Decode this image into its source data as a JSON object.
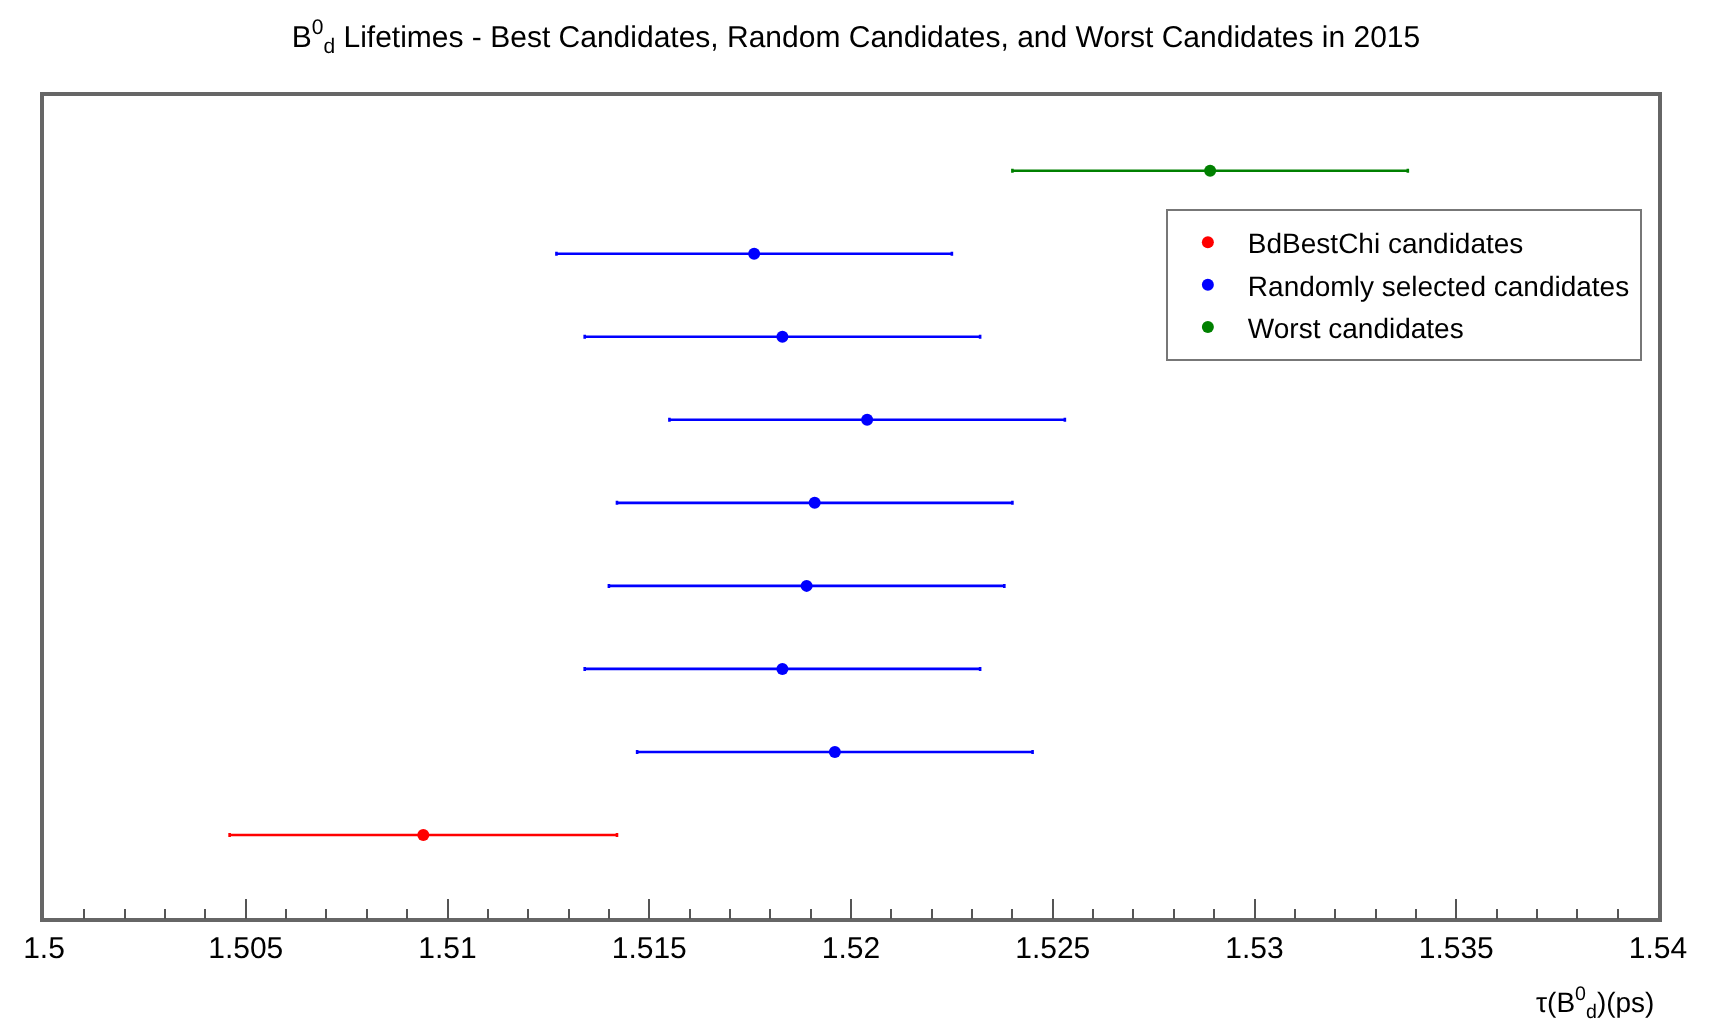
{
  "chart_data": {
    "type": "scatter",
    "orientation": "horizontal",
    "title": "B$^{0}$$_{d}$ Lifetimes - Best Candidates, Random Candidates, and Worst Candidates in 2015",
    "xlabel": "τ(B$^{0}$$_{d}$)(ps)",
    "categories": [
      null,
      null,
      null,
      null,
      null,
      null,
      null,
      null,
      null
    ],
    "series": [
      {
        "name": "BdBestChi candidates",
        "color": "#ff0000",
        "values": [
          null,
          null,
          null,
          null,
          null,
          null,
          null,
          null,
          1.5094
        ],
        "errors": [
          null,
          null,
          null,
          null,
          null,
          null,
          null,
          null,
          0.0048
        ]
      },
      {
        "name": "Randomly selected candidates",
        "color": "#0000ff",
        "values": [
          null,
          1.5176,
          1.5183,
          1.5204,
          1.5191,
          1.5189,
          1.5183,
          1.5196,
          null
        ],
        "errors": [
          null,
          0.0049,
          0.0049,
          0.0049,
          0.0049,
          0.0049,
          0.0049,
          0.0049,
          null
        ]
      },
      {
        "name": "Worst candidates",
        "color": "#008000",
        "values": [
          1.5289,
          null,
          null,
          null,
          null,
          null,
          null,
          null,
          null
        ],
        "errors": [
          0.0049,
          null,
          null,
          null,
          null,
          null,
          null,
          null,
          null
        ]
      }
    ],
    "xlim": [
      1.5,
      1.54
    ],
    "xticks": [
      1.5,
      1.505,
      1.51,
      1.515,
      1.52,
      1.525,
      1.53,
      1.535,
      1.54
    ],
    "tick_labels": "x",
    "legend": "right",
    "marker": "circle"
  }
}
